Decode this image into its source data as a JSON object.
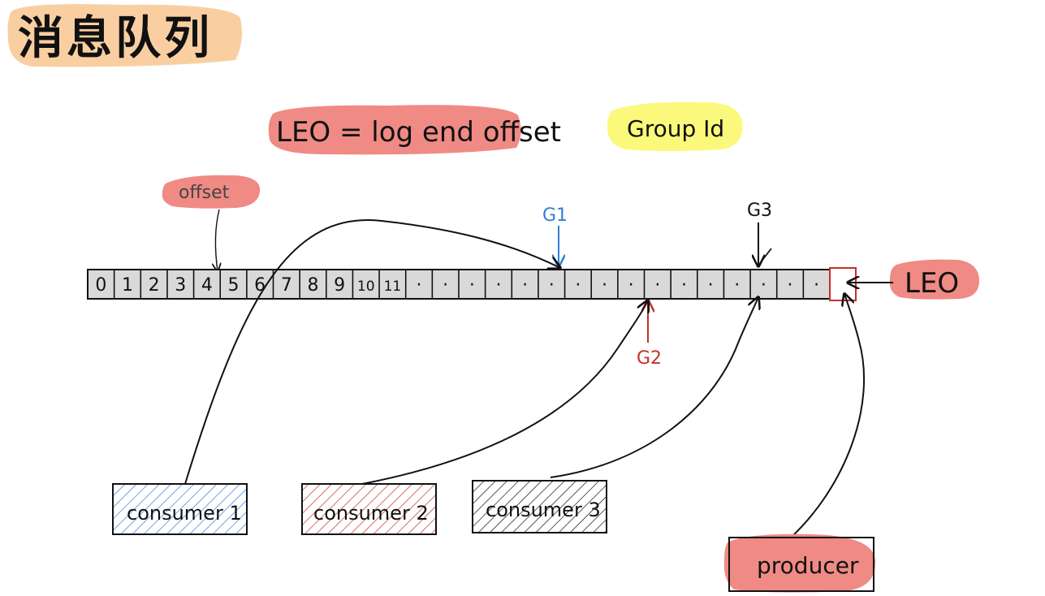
{
  "title": "消息队列",
  "notes": {
    "leo_definition": "LEO = log end offset",
    "group_id": "Group Id",
    "offset": "offset"
  },
  "log": {
    "cells": [
      "0",
      "1",
      "2",
      "3",
      "4",
      "5",
      "6",
      "7",
      "8",
      "9",
      "10",
      "11",
      "·",
      "·",
      "·",
      "·",
      "·",
      "·",
      "·",
      "·",
      "·",
      "·",
      "·",
      "·",
      "·",
      "·",
      "·",
      "·"
    ]
  },
  "markers": {
    "g1": "G1",
    "g2": "G2",
    "g3": "G3",
    "leo": "LEO"
  },
  "boxes": {
    "consumer1": "consumer 1",
    "consumer2": "consumer 2",
    "consumer3": "consumer 3",
    "producer": "producer"
  },
  "colors": {
    "title_highlight": "#f9cfa2",
    "salmon": "#ef8a84",
    "yellow": "#fbf97b",
    "log_fill": "#d9d9d9",
    "blue": "#2f7fd6",
    "red": "#c4302b",
    "ink": "#111111"
  }
}
